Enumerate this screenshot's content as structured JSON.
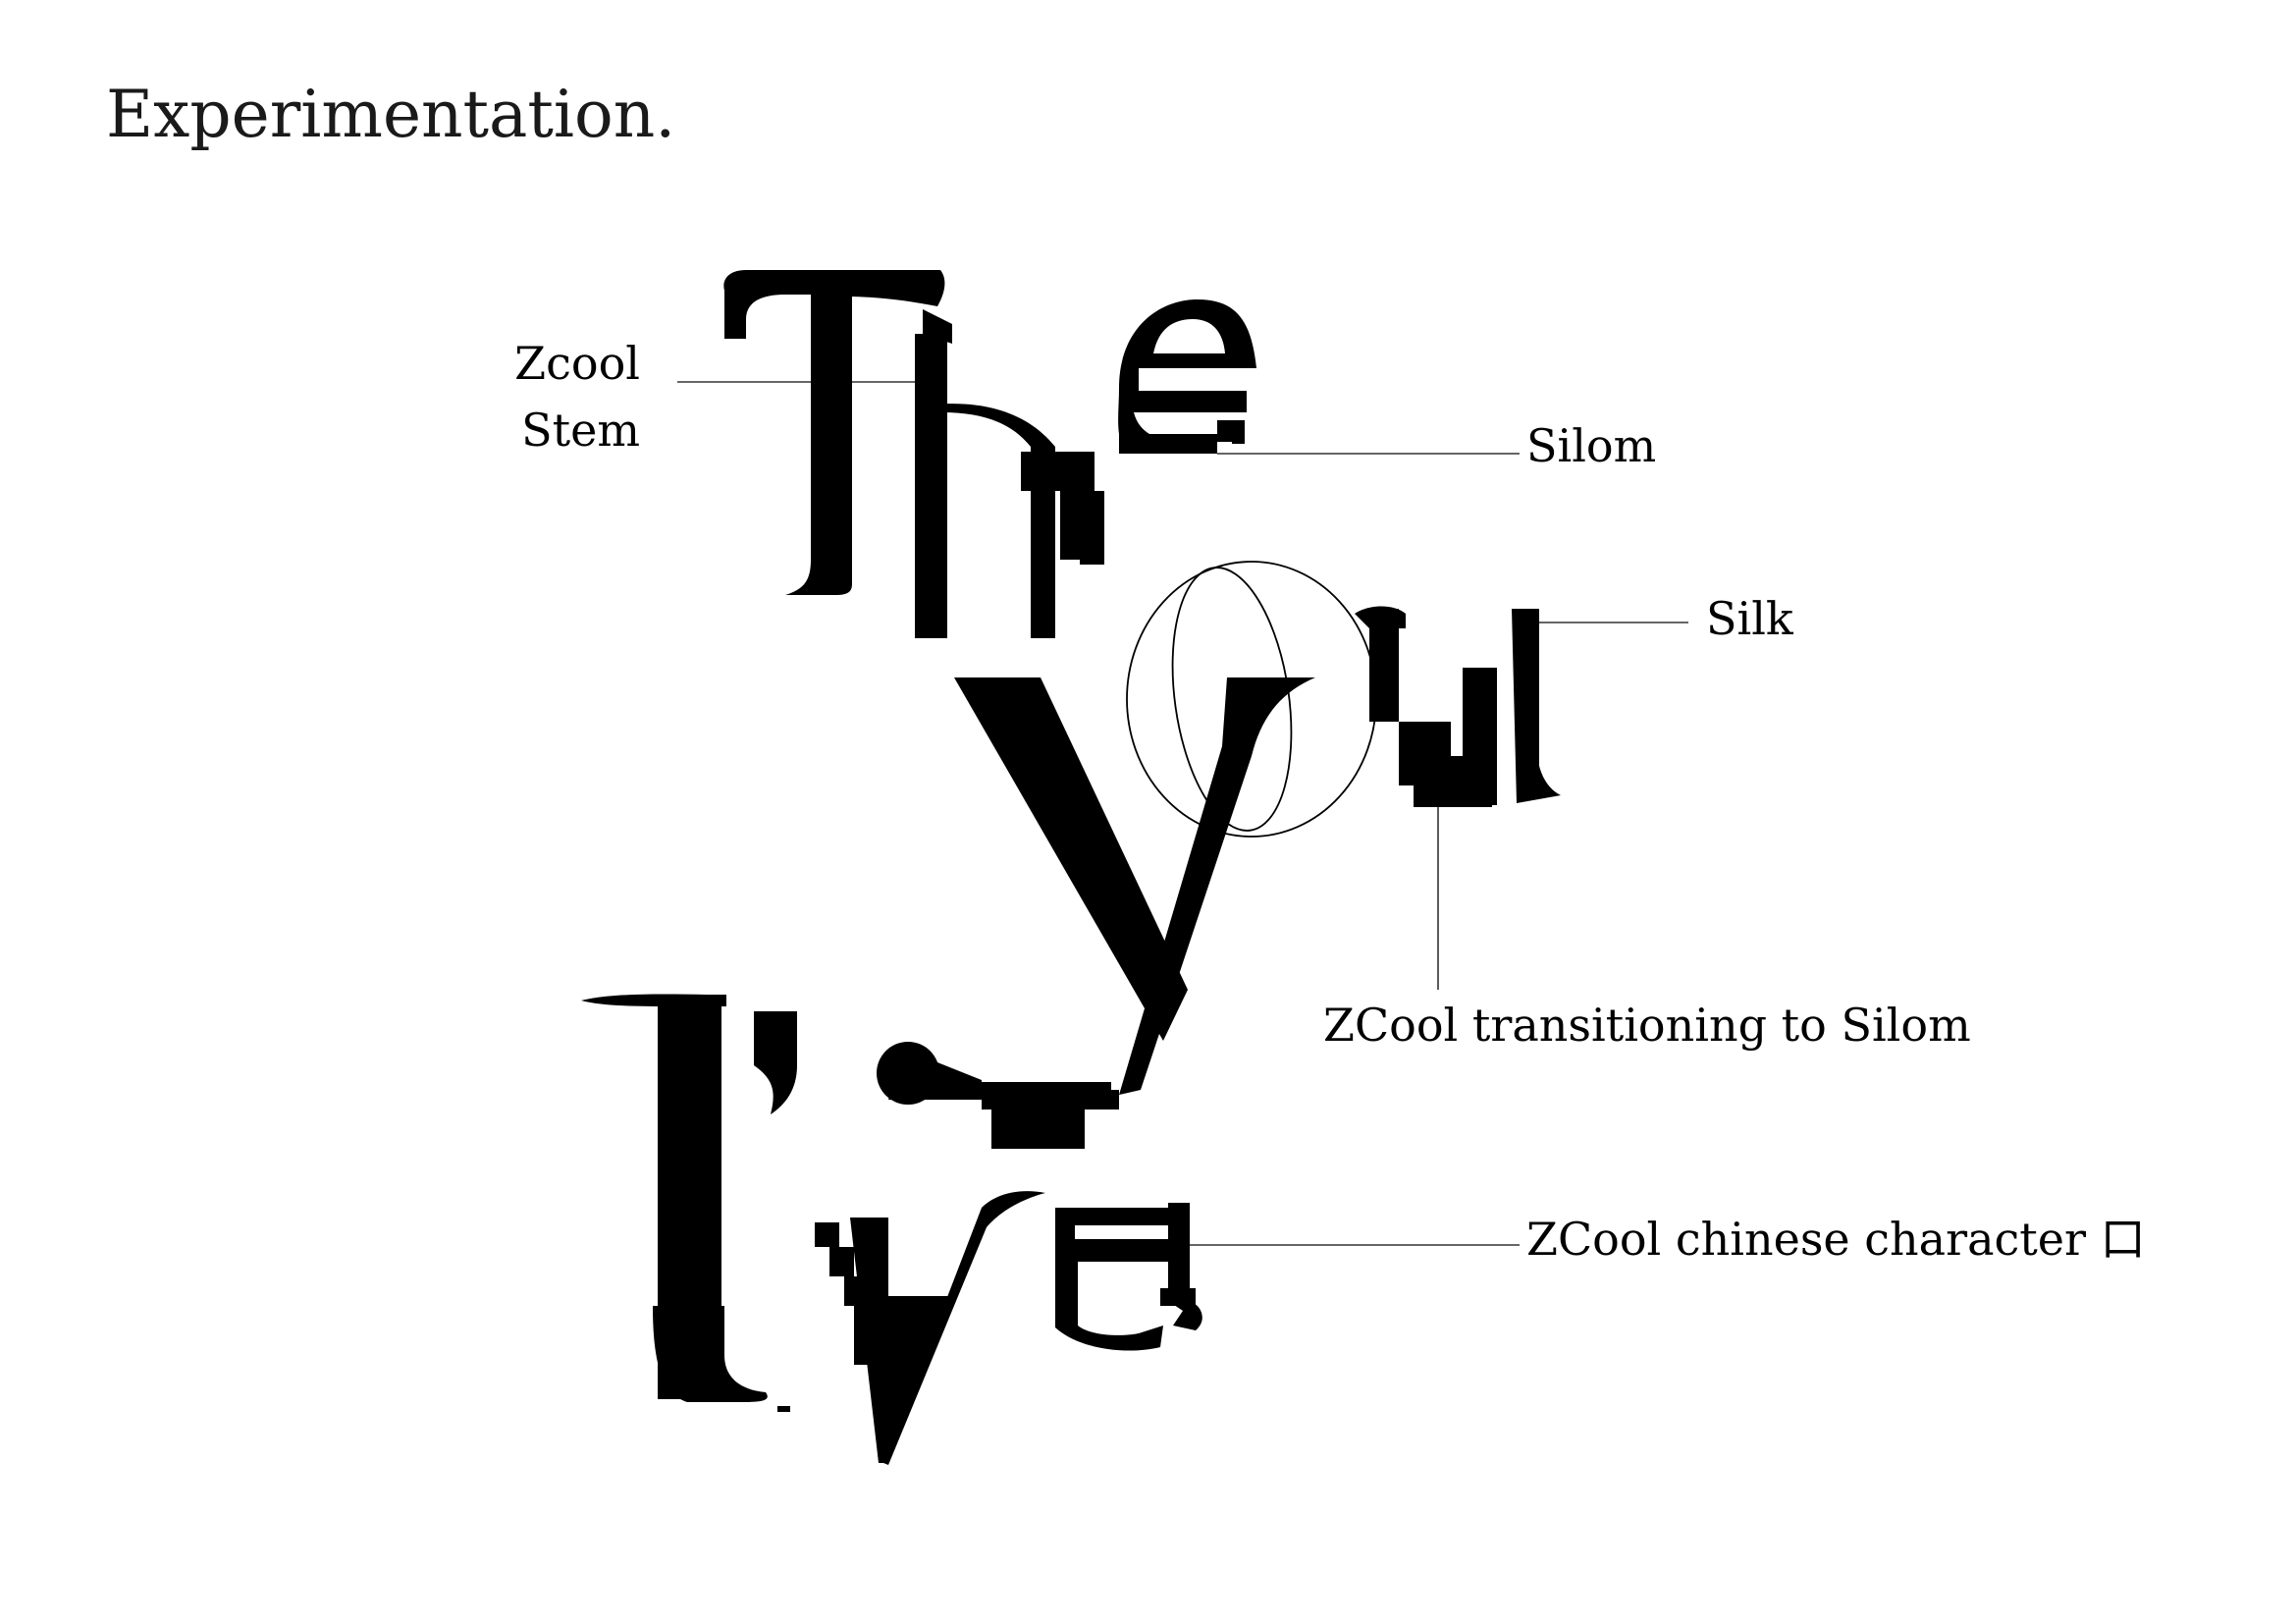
{
  "title": "Experimentation.",
  "artwork": {
    "lines": [
      "The",
      "you",
      "I've"
    ]
  },
  "annotations": {
    "zcool_stem": {
      "line1": "Zcool",
      "line2": "Stem"
    },
    "silom": "Silom",
    "silk": "Silk",
    "zcool_transition": "ZCool transitioning to Silom",
    "zcool_chinese": "ZCool chinese character 口"
  },
  "colors": {
    "ink": "#000000",
    "background": "#ffffff",
    "leader_line": "#333333"
  }
}
